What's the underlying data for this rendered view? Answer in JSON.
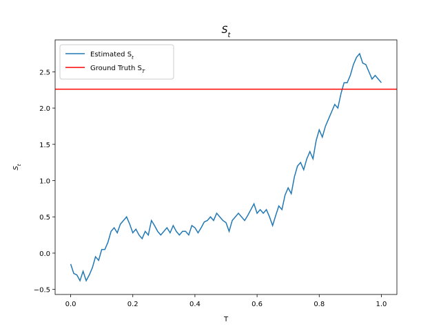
{
  "chart_data": {
    "type": "line",
    "title": "S_t",
    "xlabel": "T",
    "ylabel": "S_t",
    "x": [
      0,
      0.01,
      0.02,
      0.03,
      0.04,
      0.05,
      0.06,
      0.07,
      0.08,
      0.09,
      0.1,
      0.11,
      0.12,
      0.13,
      0.14,
      0.15,
      0.16,
      0.17,
      0.18,
      0.19,
      0.2,
      0.21,
      0.22,
      0.23,
      0.24,
      0.25,
      0.26,
      0.27,
      0.28,
      0.29,
      0.3,
      0.31,
      0.32,
      0.33,
      0.34,
      0.35,
      0.36,
      0.37,
      0.38,
      0.39,
      0.4,
      0.41,
      0.42,
      0.43,
      0.44,
      0.45,
      0.46,
      0.47,
      0.48,
      0.49,
      0.5,
      0.51,
      0.52,
      0.53,
      0.54,
      0.55,
      0.56,
      0.57,
      0.58,
      0.59,
      0.6,
      0.61,
      0.62,
      0.63,
      0.64,
      0.65,
      0.66,
      0.67,
      0.68,
      0.69,
      0.7,
      0.71,
      0.72,
      0.73,
      0.74,
      0.75,
      0.76,
      0.77,
      0.78,
      0.79,
      0.8,
      0.81,
      0.82,
      0.83,
      0.84,
      0.85,
      0.86,
      0.87,
      0.88,
      0.89,
      0.9,
      0.91,
      0.92,
      0.93,
      0.94,
      0.95,
      0.96,
      0.97,
      0.98,
      0.99,
      1.0
    ],
    "series": [
      {
        "name": "Estimated S_t",
        "color": "#1f77b4",
        "values": [
          -0.15,
          -0.28,
          -0.3,
          -0.38,
          -0.25,
          -0.38,
          -0.3,
          -0.2,
          -0.05,
          -0.1,
          0.05,
          0.05,
          0.15,
          0.3,
          0.35,
          0.28,
          0.4,
          0.45,
          0.5,
          0.4,
          0.28,
          0.33,
          0.25,
          0.2,
          0.3,
          0.25,
          0.45,
          0.38,
          0.3,
          0.25,
          0.3,
          0.35,
          0.28,
          0.38,
          0.3,
          0.25,
          0.3,
          0.3,
          0.25,
          0.38,
          0.35,
          0.28,
          0.35,
          0.43,
          0.45,
          0.5,
          0.45,
          0.55,
          0.5,
          0.45,
          0.42,
          0.3,
          0.45,
          0.5,
          0.55,
          0.5,
          0.45,
          0.52,
          0.6,
          0.68,
          0.55,
          0.6,
          0.55,
          0.6,
          0.5,
          0.38,
          0.52,
          0.65,
          0.6,
          0.8,
          0.9,
          0.82,
          1.05,
          1.2,
          1.25,
          1.15,
          1.3,
          1.4,
          1.3,
          1.55,
          1.7,
          1.6,
          1.75,
          1.85,
          1.95,
          2.05,
          2.0,
          2.2,
          2.35,
          2.35,
          2.45,
          2.6,
          2.7,
          2.75,
          2.62,
          2.6,
          2.5,
          2.4,
          2.45,
          2.4,
          2.35
        ]
      }
    ],
    "hlines": [
      {
        "name": "Ground Truth S_T",
        "color": "#ff0000",
        "y": 2.26
      }
    ],
    "xlim": [
      -0.05,
      1.05
    ],
    "ylim": [
      -0.57,
      2.94
    ],
    "xticks": [
      {
        "value": 0,
        "label": "0.0"
      },
      0.2,
      0.4,
      0.6,
      0.8,
      {
        "value": 1,
        "label": "1.0"
      }
    ],
    "yticks": [
      {
        "value": -0.5,
        "label": "−0.5"
      },
      {
        "value": 0,
        "label": "0.0"
      },
      0.5,
      {
        "value": 1,
        "label": "1.0"
      },
      1.5,
      {
        "value": 2,
        "label": "2.0"
      },
      2.5
    ],
    "legend": "upper left"
  }
}
